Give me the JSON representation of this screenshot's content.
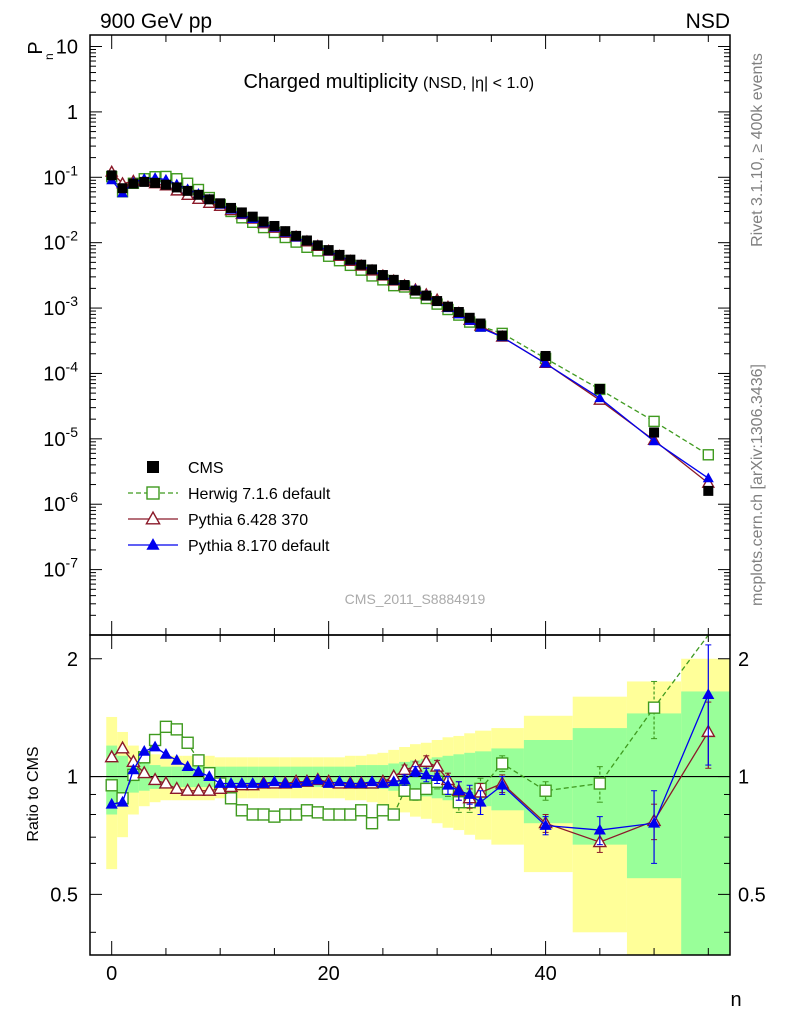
{
  "header": {
    "left_label": "900 GeV pp",
    "right_label": "NSD"
  },
  "side_labels": {
    "top": "Rivet 3.1.10, ≥ 400k events",
    "bottom": "mcplots.cern.ch [arXiv:1306.3436]"
  },
  "analysis_tag": "CMS_2011_S8884919",
  "colors": {
    "cms": "#000000",
    "herwig": "#3f9a1f",
    "pythia6": "#8b1a2a",
    "pythia8": "#0000ee",
    "band_outer": "#ffff99",
    "band_inner": "#99ff99"
  },
  "chart_data": [
    {
      "type": "scatter",
      "title": "Charged multiplicity",
      "subtitle": "(NSD, |η| < 1.0)",
      "ylabel": "P",
      "ylabel_sub": "n",
      "yscale": "log",
      "xlim": [
        -2,
        57
      ],
      "ylim": [
        1e-08,
        15
      ],
      "ytick_values": [
        1e-07,
        1e-06,
        1e-05,
        0.0001,
        0.001,
        0.01,
        0.1,
        1,
        10
      ],
      "ytick_labels": [
        {
          "base": "10",
          "exp": "-7"
        },
        {
          "base": "10",
          "exp": "-6"
        },
        {
          "base": "10",
          "exp": "-5"
        },
        {
          "base": "10",
          "exp": "-4"
        },
        {
          "base": "10",
          "exp": "-3"
        },
        {
          "base": "10",
          "exp": "-2"
        },
        {
          "base": "10",
          "exp": "-1"
        },
        {
          "base": "1",
          "exp": ""
        },
        {
          "base": "10",
          "exp": ""
        }
      ],
      "legend_position": "bottom-left",
      "x": [
        0,
        1,
        2,
        3,
        4,
        5,
        6,
        7,
        8,
        9,
        10,
        11,
        12,
        13,
        14,
        15,
        16,
        17,
        18,
        19,
        20,
        21,
        22,
        23,
        24,
        25,
        26,
        27,
        28,
        29,
        30,
        31,
        32,
        33,
        34,
        36,
        40,
        45,
        50,
        55
      ],
      "series": [
        {
          "name": "CMS",
          "marker": "square-filled",
          "line": "none",
          "values": [
            0.107,
            0.068,
            0.08,
            0.085,
            0.082,
            0.077,
            0.07,
            0.062,
            0.054,
            0.046,
            0.04,
            0.034,
            0.029,
            0.025,
            0.021,
            0.018,
            0.015,
            0.0127,
            0.0108,
            0.0091,
            0.0077,
            0.0065,
            0.0055,
            0.0046,
            0.0039,
            0.0032,
            0.0027,
            0.00225,
            0.00185,
            0.00155,
            0.00128,
            0.00105,
            0.00087,
            0.00071,
            0.00058,
            0.00038,
            0.000185,
            5.8e-05,
            1.25e-05,
            1.6e-06
          ]
        },
        {
          "name": "Herwig 7.1.6 default",
          "marker": "square-open",
          "line": "dashed",
          "values": [
            0.102,
            0.06,
            0.081,
            0.095,
            0.102,
            0.103,
            0.095,
            0.081,
            0.065,
            0.049,
            0.038,
            0.03,
            0.024,
            0.0205,
            0.017,
            0.0143,
            0.012,
            0.0102,
            0.0085,
            0.0075,
            0.0062,
            0.0053,
            0.0045,
            0.0038,
            0.0031,
            0.0027,
            0.0022,
            0.0021,
            0.0017,
            0.0014,
            0.00115,
            0.00095,
            0.00078,
            0.00061,
            0.00053,
            0.00041,
            0.00017,
            5.7e-05,
            1.85e-05,
            5.7e-06
          ]
        },
        {
          "name": "Pythia 6.428 370",
          "marker": "triangle-open",
          "line": "solid",
          "values": [
            0.12,
            0.08,
            0.087,
            0.087,
            0.08,
            0.074,
            0.062,
            0.053,
            0.046,
            0.04,
            0.036,
            0.031,
            0.027,
            0.023,
            0.0195,
            0.0167,
            0.014,
            0.0122,
            0.0103,
            0.0088,
            0.0074,
            0.0062,
            0.0052,
            0.0044,
            0.0037,
            0.0031,
            0.0026,
            0.0022,
            0.0019,
            0.0016,
            0.00133,
            0.00103,
            0.00083,
            0.00065,
            0.00053,
            0.00036,
            0.000143,
            3.9e-05,
            9.5e-06,
            2.1e-06
          ]
        },
        {
          "name": "Pythia 8.170 default",
          "marker": "triangle-filled",
          "line": "solid",
          "values": [
            0.09,
            0.057,
            0.083,
            0.095,
            0.098,
            0.092,
            0.078,
            0.066,
            0.056,
            0.046,
            0.038,
            0.032,
            0.027,
            0.023,
            0.0198,
            0.017,
            0.0142,
            0.012,
            0.0104,
            0.009,
            0.0074,
            0.0063,
            0.0053,
            0.0045,
            0.0038,
            0.0031,
            0.0026,
            0.0022,
            0.0019,
            0.00155,
            0.00125,
            0.001,
            0.0008,
            0.00064,
            0.0005,
            0.00036,
            0.000142,
            4.2e-05,
            9.2e-06,
            2.5e-06
          ]
        }
      ]
    },
    {
      "type": "scatter",
      "ylabel": "Ratio to CMS",
      "xlabel": "n",
      "yscale": "log",
      "xlim": [
        -2,
        57
      ],
      "ylim": [
        0.35,
        2.3
      ],
      "ytick_values": [
        0.5,
        1,
        2
      ],
      "ytick_labels": [
        "0.5",
        "1",
        "2"
      ],
      "xtick_values": [
        0,
        20,
        40
      ],
      "xtick_labels": [
        "0",
        "20",
        "40"
      ],
      "reference_line": 1,
      "x": [
        0,
        1,
        2,
        3,
        4,
        5,
        6,
        7,
        8,
        9,
        10,
        11,
        12,
        13,
        14,
        15,
        16,
        17,
        18,
        19,
        20,
        21,
        22,
        23,
        24,
        25,
        26,
        27,
        28,
        29,
        30,
        31,
        32,
        33,
        34,
        36,
        40,
        45,
        50,
        55
      ],
      "bands": {
        "bin_edges": [
          -0.5,
          0.5,
          1.5,
          2.5,
          3.5,
          4.5,
          5.5,
          6.5,
          7.5,
          8.5,
          9.5,
          10.5,
          11.5,
          12.5,
          13.5,
          14.5,
          15.5,
          16.5,
          17.5,
          18.5,
          19.5,
          20.5,
          21.5,
          22.5,
          23.5,
          24.5,
          25.5,
          26.5,
          27.5,
          28.5,
          29.5,
          30.5,
          31.5,
          32.5,
          33.5,
          35,
          38,
          42.5,
          47.5,
          52.5,
          57
        ],
        "outer": [
          0.42,
          0.3,
          0.2,
          0.16,
          0.14,
          0.13,
          0.13,
          0.13,
          0.13,
          0.13,
          0.12,
          0.12,
          0.12,
          0.12,
          0.12,
          0.12,
          0.12,
          0.12,
          0.12,
          0.12,
          0.12,
          0.12,
          0.13,
          0.13,
          0.14,
          0.15,
          0.17,
          0.19,
          0.21,
          0.22,
          0.24,
          0.26,
          0.27,
          0.29,
          0.31,
          0.33,
          0.43,
          0.6,
          0.75,
          1.0
        ],
        "inner": [
          0.2,
          0.13,
          0.09,
          0.08,
          0.07,
          0.06,
          0.06,
          0.06,
          0.06,
          0.06,
          0.06,
          0.06,
          0.06,
          0.06,
          0.06,
          0.06,
          0.06,
          0.06,
          0.06,
          0.06,
          0.06,
          0.06,
          0.06,
          0.07,
          0.07,
          0.07,
          0.08,
          0.09,
          0.1,
          0.11,
          0.12,
          0.13,
          0.14,
          0.15,
          0.16,
          0.18,
          0.24,
          0.33,
          0.45,
          0.65
        ]
      },
      "series": [
        {
          "name": "Herwig 7.1.6 default",
          "marker": "square-open",
          "line": "dashed",
          "values": [
            0.95,
            0.88,
            1.01,
            1.12,
            1.24,
            1.34,
            1.32,
            1.22,
            1.1,
            1.02,
            0.96,
            0.88,
            0.82,
            0.8,
            0.8,
            0.79,
            0.8,
            0.8,
            0.82,
            0.81,
            0.8,
            0.8,
            0.8,
            0.82,
            0.76,
            0.82,
            0.8,
            0.92,
            0.9,
            0.93,
            0.97,
            0.93,
            0.86,
            0.86,
            0.93,
            1.08,
            0.92,
            0.96,
            1.5,
            2.35
          ],
          "errors": [
            0,
            0,
            0,
            0,
            0,
            0,
            0,
            0,
            0,
            0,
            0,
            0,
            0,
            0,
            0,
            0,
            0,
            0,
            0,
            0,
            0,
            0,
            0,
            0,
            0,
            0,
            0,
            0.03,
            0.03,
            0.03,
            0.04,
            0.04,
            0.05,
            0.05,
            0.06,
            0.05,
            0.05,
            0.1,
            0.25,
            0
          ]
        },
        {
          "name": "Pythia 6.428 370",
          "marker": "triangle-open",
          "line": "solid",
          "values": [
            1.12,
            1.18,
            1.09,
            1.02,
            0.98,
            0.96,
            0.93,
            0.92,
            0.92,
            0.92,
            0.93,
            0.94,
            0.95,
            0.95,
            0.96,
            0.96,
            0.96,
            0.97,
            0.97,
            0.98,
            0.97,
            0.96,
            0.96,
            0.96,
            0.96,
            0.97,
            1.0,
            1.04,
            1.06,
            1.09,
            1.06,
            0.98,
            0.92,
            0.88,
            0.91,
            0.96,
            0.76,
            0.68,
            0.77,
            1.3
          ],
          "errors": [
            0,
            0,
            0,
            0,
            0,
            0,
            0,
            0,
            0,
            0,
            0,
            0,
            0,
            0,
            0,
            0,
            0,
            0,
            0,
            0,
            0,
            0,
            0,
            0,
            0,
            0,
            0,
            0.03,
            0.03,
            0.04,
            0.04,
            0.04,
            0.05,
            0.05,
            0.05,
            0.05,
            0.04,
            0.04,
            0.08,
            0.25
          ]
        },
        {
          "name": "Pythia 8.170 default",
          "marker": "triangle-filled",
          "line": "solid",
          "values": [
            0.85,
            0.86,
            1.04,
            1.16,
            1.19,
            1.14,
            1.1,
            1.06,
            1.03,
            1.0,
            0.96,
            0.96,
            0.96,
            0.96,
            0.96,
            0.97,
            0.96,
            0.96,
            0.97,
            0.98,
            0.96,
            0.97,
            0.96,
            0.96,
            0.97,
            0.96,
            0.97,
            0.98,
            1.03,
            1.01,
            1.0,
            0.95,
            0.92,
            0.9,
            0.86,
            0.95,
            0.75,
            0.73,
            0.76,
            1.62
          ],
          "errors": [
            0,
            0,
            0,
            0,
            0,
            0,
            0,
            0,
            0,
            0,
            0,
            0,
            0,
            0,
            0,
            0,
            0,
            0,
            0,
            0,
            0,
            0,
            0,
            0,
            0,
            0,
            0,
            0.03,
            0.03,
            0.04,
            0.04,
            0.05,
            0.05,
            0.05,
            0.06,
            0.05,
            0.04,
            0.06,
            0.16,
            0.55
          ]
        }
      ]
    }
  ]
}
